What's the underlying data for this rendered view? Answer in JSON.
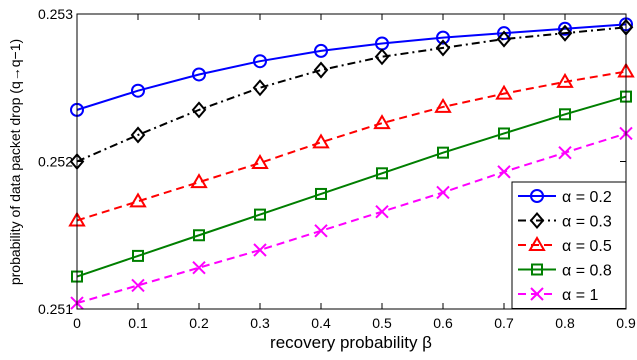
{
  "chart_data": {
    "type": "line",
    "title": "",
    "xlabel": "recovery probability β",
    "ylabel": "probability of data packet drop (q→q−1)",
    "x": [
      0,
      0.1,
      0.2,
      0.3,
      0.4,
      0.5,
      0.6,
      0.7,
      0.8,
      0.9
    ],
    "xticks": [
      "0",
      "0.1",
      "0.2",
      "0.3",
      "0.4",
      "0.5",
      "0.6",
      "0.7",
      "0.8",
      "0.9"
    ],
    "yticks": [
      "0.251",
      "0.252",
      "0.253"
    ],
    "xlim": [
      0,
      0.9
    ],
    "ylim": [
      0.251,
      0.253
    ],
    "grid": false,
    "legend_position": "lower-right",
    "series": [
      {
        "name": "α = 0.2",
        "color": "#0000ff",
        "dash": "solid",
        "marker": "circle",
        "values": [
          0.25235,
          0.25248,
          0.25259,
          0.25268,
          0.25275,
          0.2528,
          0.25284,
          0.25287,
          0.2529,
          0.25293
        ]
      },
      {
        "name": "α = 0.3",
        "color": "#000000",
        "dash": "dashdot",
        "marker": "diamond",
        "values": [
          0.252,
          0.25218,
          0.25235,
          0.2525,
          0.25262,
          0.25271,
          0.25277,
          0.25283,
          0.25287,
          0.25291
        ]
      },
      {
        "name": "α = 0.5",
        "color": "#ff0000",
        "dash": "dashed",
        "marker": "triangle",
        "values": [
          0.2516,
          0.25173,
          0.25186,
          0.25199,
          0.25213,
          0.25226,
          0.25237,
          0.25246,
          0.25254,
          0.25261
        ]
      },
      {
        "name": "α = 0.8",
        "color": "#007f00",
        "dash": "solid",
        "marker": "square",
        "values": [
          0.25122,
          0.25136,
          0.2515,
          0.25164,
          0.25178,
          0.25192,
          0.25206,
          0.25219,
          0.25232,
          0.25244
        ]
      },
      {
        "name": "α = 1",
        "color": "#ff00ff",
        "dash": "dashed",
        "marker": "x",
        "values": [
          0.25104,
          0.25116,
          0.25128,
          0.2514,
          0.25153,
          0.25166,
          0.25179,
          0.25193,
          0.25206,
          0.25219
        ]
      }
    ]
  }
}
